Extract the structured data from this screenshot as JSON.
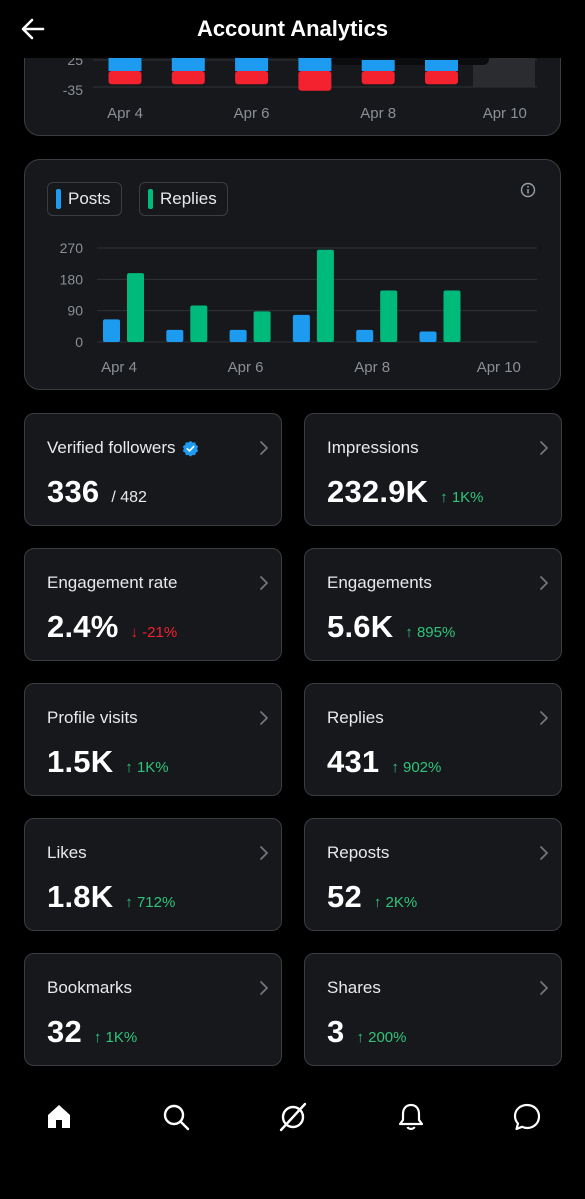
{
  "header": {
    "title": "Account Analytics",
    "back_icon": "arrow-left-icon"
  },
  "chart_data": [
    {
      "type": "bar",
      "categories": [
        "Apr 4",
        "Apr 5",
        "Apr 6",
        "Apr 7",
        "Apr 8",
        "Apr 9",
        "Apr 10"
      ],
      "x_tick_labels": [
        "Apr 4",
        "Apr 6",
        "Apr 8",
        "Apr 10"
      ],
      "y_tick_labels": [
        "25",
        "-35"
      ],
      "series": [
        {
          "values": [
            16,
            16,
            16,
            16,
            10,
            10,
            0
          ],
          "color": "#1d9bf0"
        },
        {
          "values": [
            -12,
            -12,
            -12,
            -18,
            -12,
            -12,
            0
          ],
          "color": "#f4212e"
        }
      ],
      "grid": true
    },
    {
      "type": "bar",
      "categories": [
        "Apr 4",
        "Apr 5",
        "Apr 6",
        "Apr 7",
        "Apr 8",
        "Apr 9",
        "Apr 10"
      ],
      "x_tick_labels": [
        "Apr 4",
        "Apr 6",
        "Apr 8",
        "Apr 10"
      ],
      "y_ticks": [
        0,
        90,
        180,
        270
      ],
      "ylim": [
        0,
        270
      ],
      "series": [
        {
          "name": "Posts",
          "values": [
            65,
            35,
            35,
            78,
            35,
            30,
            0
          ],
          "color": "#1d9bf0"
        },
        {
          "name": "Replies",
          "values": [
            198,
            105,
            88,
            265,
            148,
            148,
            0
          ],
          "color": "#00ba7c"
        }
      ],
      "legend": "top-left",
      "grid": true
    }
  ],
  "stats": [
    {
      "label": "Verified followers",
      "value": "336",
      "sub": "/ 482",
      "delta": "",
      "dir": ""
    },
    {
      "label": "Impressions",
      "value": "232.9K",
      "sub": "",
      "delta": "↑ 1K%",
      "dir": "up"
    },
    {
      "label": "Engagement rate",
      "value": "2.4%",
      "sub": "",
      "delta": "↓ -21%",
      "dir": "down"
    },
    {
      "label": "Engagements",
      "value": "5.6K",
      "sub": "",
      "delta": "↑ 895%",
      "dir": "up"
    },
    {
      "label": "Profile visits",
      "value": "1.5K",
      "sub": "",
      "delta": "↑ 1K%",
      "dir": "up"
    },
    {
      "label": "Replies",
      "value": "431",
      "sub": "",
      "delta": "↑ 902%",
      "dir": "up"
    },
    {
      "label": "Likes",
      "value": "1.8K",
      "sub": "",
      "delta": "↑ 712%",
      "dir": "up"
    },
    {
      "label": "Reposts",
      "value": "52",
      "sub": "",
      "delta": "↑ 2K%",
      "dir": "up"
    },
    {
      "label": "Bookmarks",
      "value": "32",
      "sub": "",
      "delta": "↑ 1K%",
      "dir": "up"
    },
    {
      "label": "Shares",
      "value": "3",
      "sub": "",
      "delta": "↑ 200%",
      "dir": "up"
    }
  ],
  "nav": [
    "home-icon",
    "search-icon",
    "grok-icon",
    "notifications-icon",
    "messages-icon"
  ],
  "colors": {
    "posts": "#1d9bf0",
    "replies": "#00ba7c",
    "negative": "#f4212e",
    "up": "#2fc47a",
    "verified": "#1d9bf0"
  }
}
